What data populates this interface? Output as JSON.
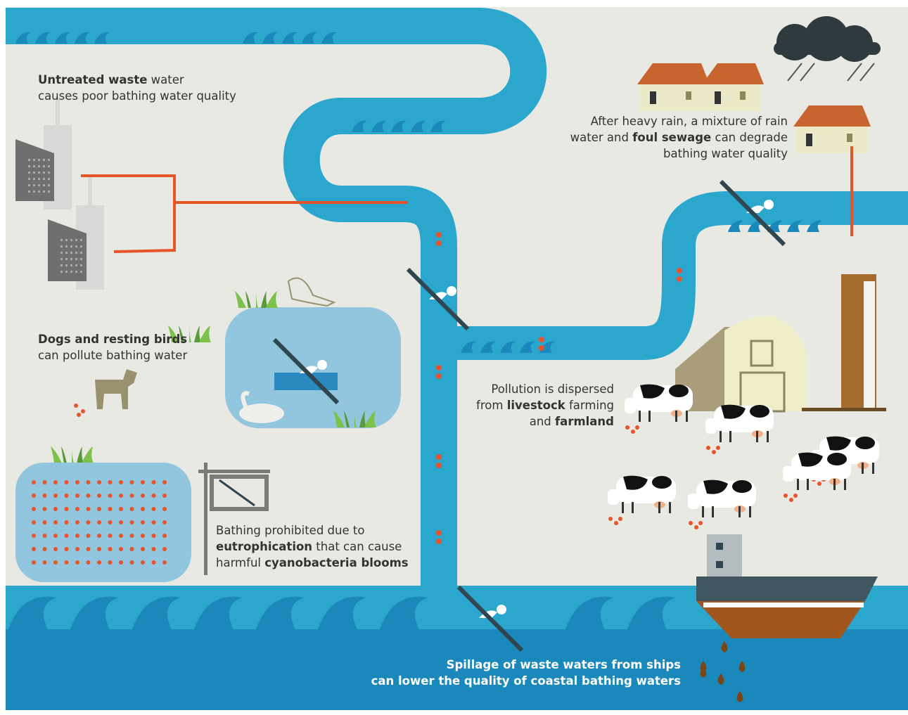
{
  "captions": [
    {
      "lines": [
        [
          {
            "text": "Untreated waste",
            "bold": true
          },
          " water"
        ],
        [
          "causes poor bathing water quality"
        ]
      ]
    },
    {
      "lines": [
        [
          "After heavy rain, a mixture of rain"
        ],
        [
          "water and ",
          {
            "text": "foul sewage",
            "bold": true
          },
          " can degrade"
        ],
        [
          "bathing water quality"
        ]
      ]
    },
    {
      "lines": [
        [
          {
            "text": "Dogs and resting birds",
            "bold": true
          }
        ],
        [
          "can pollute bathing water"
        ]
      ]
    },
    {
      "lines": [
        [
          "Pollution is dispersed"
        ],
        [
          "from ",
          {
            "text": "livestock",
            "bold": true
          },
          " farming"
        ],
        [
          "and ",
          {
            "text": "farmland",
            "bold": true
          }
        ]
      ]
    },
    {
      "lines": [
        [
          "Bathing prohibited due to"
        ],
        [
          {
            "text": "eutrophication",
            "bold": true
          },
          " that can cause"
        ],
        [
          "harmful ",
          {
            "text": "cyanobacteria blooms",
            "bold": true
          }
        ]
      ]
    },
    {
      "lines": [
        [
          "Spillage of waste waters from ships"
        ],
        [
          "can lower the quality of coastal bathing waters"
        ]
      ]
    }
  ]
}
